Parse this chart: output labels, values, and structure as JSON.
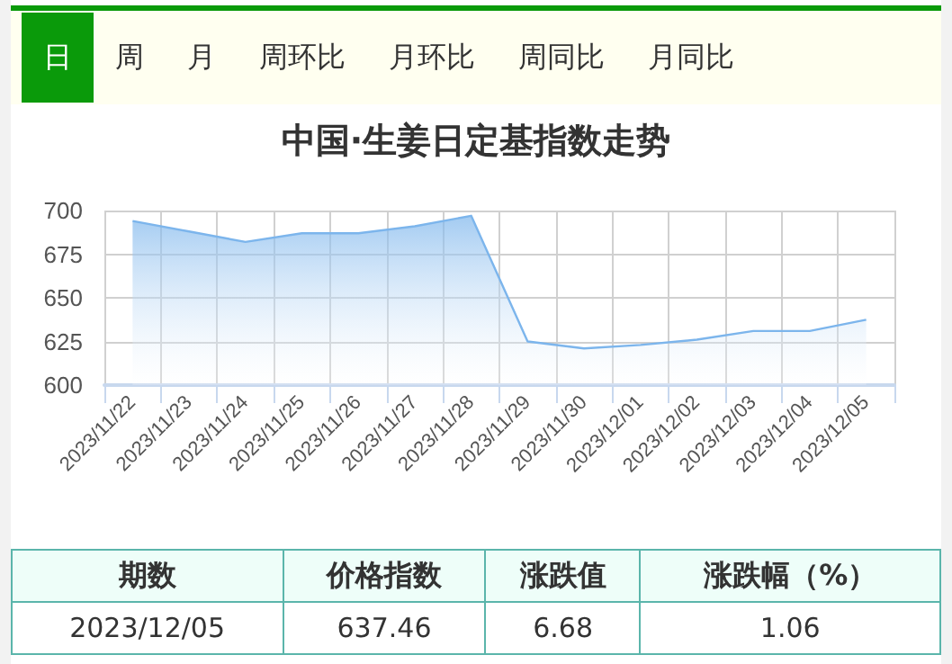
{
  "chart_data": {
    "type": "area",
    "title": "中国·生姜日定基指数走势",
    "categories": [
      "2023/11/22",
      "2023/11/23",
      "2023/11/24",
      "2023/11/25",
      "2023/11/26",
      "2023/11/27",
      "2023/11/28",
      "2023/11/29",
      "2023/11/30",
      "2023/12/01",
      "2023/12/02",
      "2023/12/03",
      "2023/12/04",
      "2023/12/05"
    ],
    "series": [
      {
        "color": "#7cb5ec",
        "values": [
          694,
          688,
          682,
          687,
          687,
          691,
          697,
          625,
          621,
          623,
          626,
          631,
          631,
          637.46
        ]
      }
    ],
    "ylim": [
      600,
      700
    ],
    "yticks": [
      600,
      625,
      650,
      675,
      700
    ],
    "grid": true,
    "marker": "none",
    "annotations": [
      "日",
      "周",
      "月",
      "周环比",
      "月环比",
      "周同比",
      "月同比",
      "期数",
      "价格指数",
      "涨跌值",
      "涨跌幅（%）",
      "2023/12/05",
      "637.46",
      "6.68",
      "1.06"
    ]
  }
}
